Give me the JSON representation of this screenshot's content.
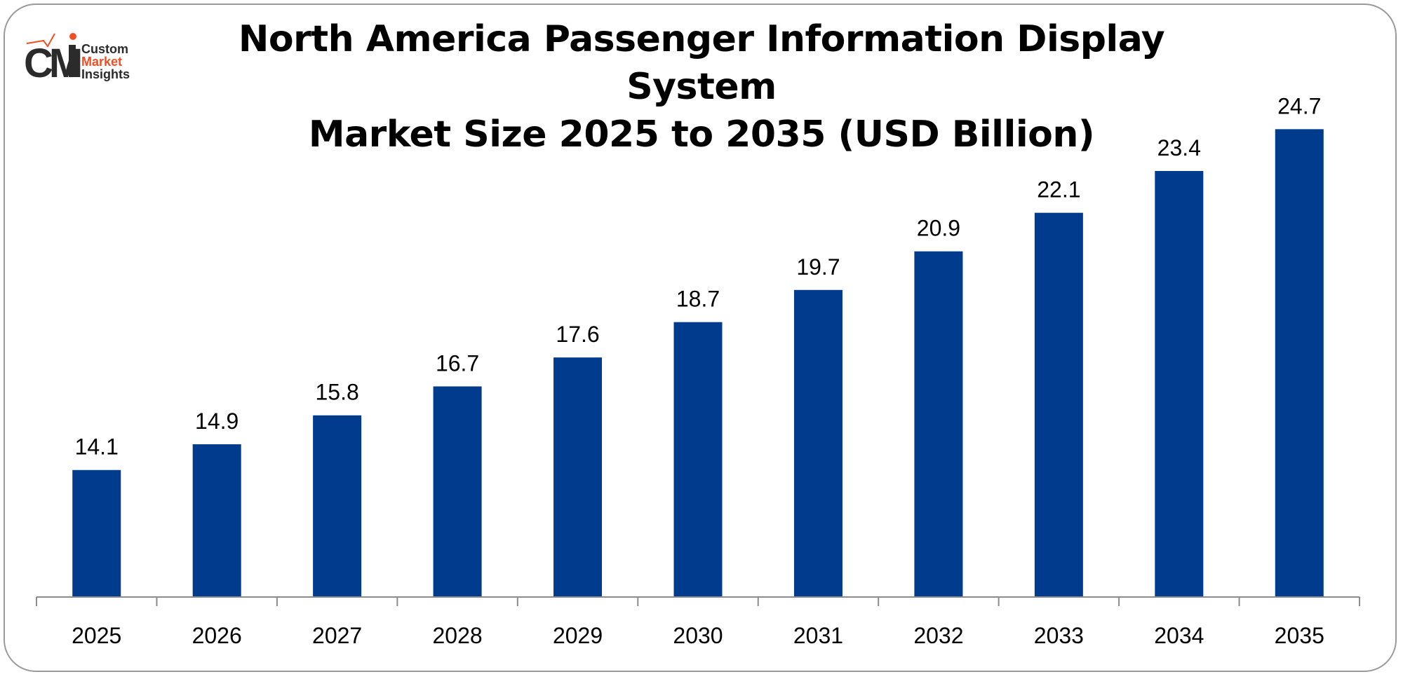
{
  "logo": {
    "line1": "Custom",
    "line2": "Market",
    "line3": "Insights",
    "mark": "CMI"
  },
  "chart_data": {
    "type": "bar",
    "title_line1": "North America Passenger Information Display System",
    "title_line2": "Market Size 2025 to 2035 (USD Billion)",
    "categories": [
      "2025",
      "2026",
      "2027",
      "2028",
      "2029",
      "2030",
      "2031",
      "2032",
      "2033",
      "2034",
      "2035"
    ],
    "values": [
      14.1,
      14.9,
      15.8,
      16.7,
      17.6,
      18.7,
      19.7,
      20.9,
      22.1,
      23.4,
      24.7
    ],
    "data_labels": [
      "14.1",
      "14.9",
      "15.8",
      "16.7",
      "17.6",
      "18.7",
      "19.7",
      "20.9",
      "22.1",
      "23.4",
      "24.7"
    ],
    "xlabel": "",
    "ylabel": "",
    "ylim": [
      10.15,
      25.1
    ],
    "grid": false,
    "bar_color": "#003B8E"
  }
}
